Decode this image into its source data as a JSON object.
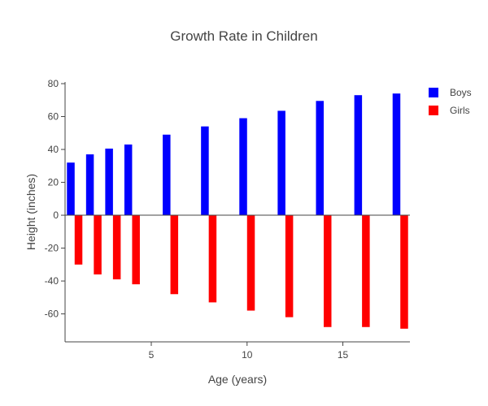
{
  "chart_data": {
    "type": "bar",
    "title": "Growth Rate in Children",
    "xlabel": "Age (years)",
    "ylabel": "Height (inches)",
    "x": [
      1,
      2,
      3,
      4,
      6,
      8,
      10,
      12,
      14,
      16,
      18
    ],
    "series": [
      {
        "name": "Boys",
        "color": "#0000ff",
        "values": [
          32,
          37,
          40.5,
          43,
          49,
          54,
          59,
          63.5,
          69.5,
          73,
          74
        ]
      },
      {
        "name": "Girls",
        "color": "#ff0000",
        "values": [
          -30,
          -36,
          -39,
          -42,
          -48,
          -53,
          -58,
          -62,
          -68,
          -68,
          -69
        ]
      }
    ],
    "xlim": [
      0.5,
      18.5
    ],
    "ylim": [
      -77,
      81
    ],
    "xticks": [
      5,
      10,
      15
    ],
    "yticks": [
      -60,
      -40,
      -20,
      0,
      20,
      40,
      60,
      80
    ],
    "grid": false,
    "legend": "top-right"
  }
}
